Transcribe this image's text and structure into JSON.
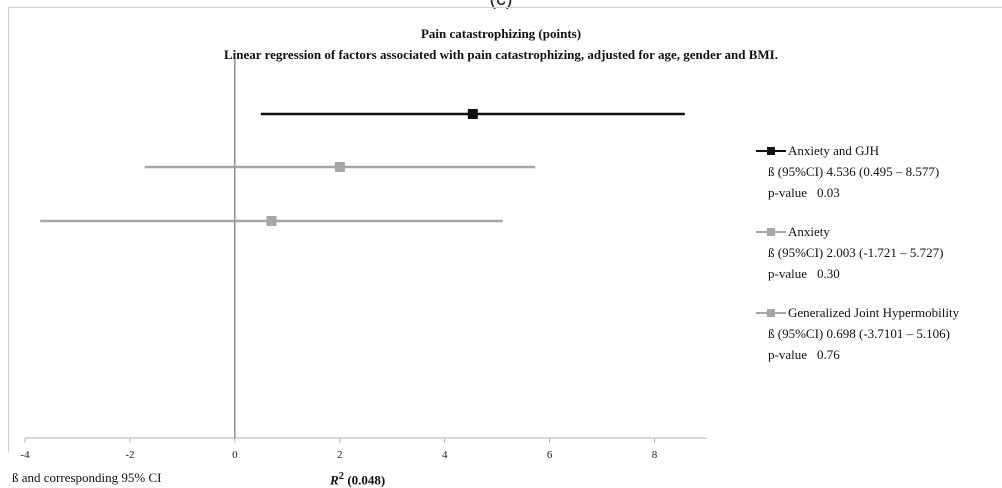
{
  "panel_label": "(c)",
  "chart_data": {
    "type": "forest",
    "title": "Pain catastrophizing (points)",
    "subtitle": "Linear regression of factors associated with pain catastrophizing, adjusted for age, gender and BMI.",
    "xlabel": "ß and corresponding 95% CI",
    "xlim": [
      -4,
      9
    ],
    "xticks": [
      -4,
      -2,
      0,
      2,
      4,
      6,
      8
    ],
    "reference_line": 0,
    "series": [
      {
        "name": "Anxiety and GJH",
        "estimate": 4.536,
        "lower": 0.495,
        "upper": 8.577,
        "ci_text": "4.536 (0.495 – 8.577)",
        "p_text": "0.03",
        "color": "#111111"
      },
      {
        "name": "Anxiety",
        "estimate": 2.003,
        "lower": -1.721,
        "upper": 5.727,
        "ci_text": "2.003 (-1.721 – 5.727)",
        "p_text": "0.30",
        "color": "#a6a6a6"
      },
      {
        "name": "Generalized Joint Hypermobility",
        "estimate": 0.698,
        "lower": -3.7101,
        "upper": 5.106,
        "ci_text": "0.698 (-3.7101 – 5.106)",
        "p_text": "0.76",
        "color": "#a6a6a6"
      }
    ],
    "legend_position": "right",
    "annotation_r2": "(0.048)"
  },
  "legend": {
    "beta_label": "ß (95%CI)",
    "p_label": "p-value"
  },
  "footer": {
    "r2_symbol": "R",
    "r2_sup": "2"
  }
}
